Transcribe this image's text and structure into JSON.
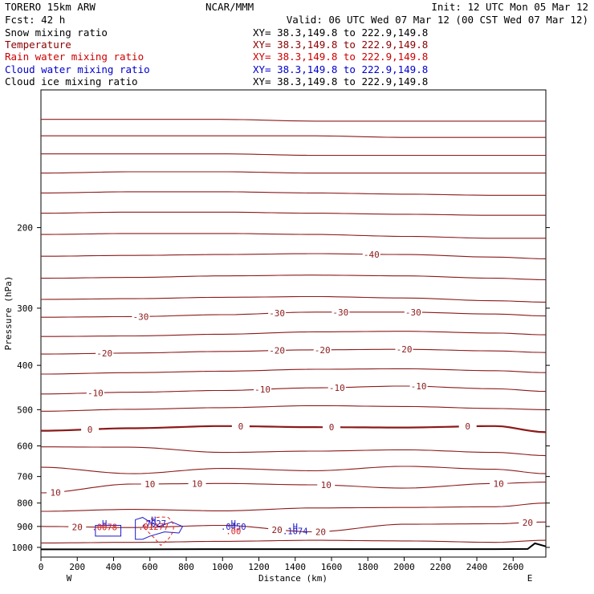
{
  "header": {
    "model": "TORERO  15km ARW",
    "center": "NCAR/MMM",
    "init": "Init: 12 UTC Mon 05 Mar 12",
    "fcst": "Fcst:   42 h",
    "valid": "Valid: 06 UTC Wed 07 Mar 12 (00 CST Wed 07 Mar 12)"
  },
  "legend": [
    {
      "label": "Snow mixing ratio",
      "xy": "XY=  38.3,149.8 to 222.9,149.8",
      "color": "#000000"
    },
    {
      "label": "Temperature",
      "xy": "XY=  38.3,149.8 to 222.9,149.8",
      "color": "#8b0000"
    },
    {
      "label": "Rain water mixing ratio",
      "xy": "XY=  38.3,149.8 to 222.9,149.8",
      "color": "#cc0000"
    },
    {
      "label": "Cloud water mixing ratio",
      "xy": "XY=  38.3,149.8 to 222.9,149.8",
      "color": "#0000cc"
    },
    {
      "label": "Cloud ice mixing ratio",
      "xy": "XY=  38.3,149.8 to 222.9,149.8",
      "color": "#000000"
    }
  ],
  "colors": {
    "temperature": "#8b1a1a",
    "rain": "#dd2222",
    "cloud_water": "#1a1acc",
    "terrain": "#000000",
    "axes": "#000000"
  },
  "chart_data": {
    "type": "line",
    "xlabel": "Distance (km)",
    "ylabel": "Pressure (hPa)",
    "xlim": [
      0,
      2780
    ],
    "ylim": [
      1050,
      100
    ],
    "y_scale": "log",
    "x_ticks": [
      0,
      200,
      400,
      600,
      800,
      1000,
      1200,
      1400,
      1600,
      1800,
      2000,
      2200,
      2400,
      2600
    ],
    "y_ticks": [
      200,
      300,
      400,
      500,
      600,
      700,
      800,
      900,
      1000
    ],
    "x_end_labels": {
      "left": "W",
      "right": "E"
    },
    "temperature_contours": [
      {
        "pressure": [
          116,
          116,
          116,
          117,
          117,
          117,
          117
        ],
        "x": [
          0,
          500,
          1000,
          1500,
          2000,
          2500,
          2780
        ]
      },
      {
        "pressure": [
          126,
          126,
          126,
          126,
          127,
          127,
          127
        ],
        "x": [
          0,
          500,
          1000,
          1500,
          2000,
          2500,
          2780
        ]
      },
      {
        "pressure": [
          138,
          138,
          138,
          139,
          139,
          139,
          139
        ],
        "x": [
          0,
          500,
          1000,
          1500,
          2000,
          2500,
          2780
        ]
      },
      {
        "pressure": [
          152,
          151,
          151,
          152,
          152,
          152,
          152
        ],
        "x": [
          0,
          500,
          1000,
          1500,
          2000,
          2500,
          2780
        ]
      },
      {
        "pressure": [
          168,
          167,
          167,
          168,
          169,
          170,
          170
        ],
        "x": [
          0,
          500,
          1000,
          1500,
          2000,
          2500,
          2780
        ]
      },
      {
        "pressure": [
          186,
          185,
          185,
          186,
          187,
          188,
          188
        ],
        "x": [
          0,
          500,
          1000,
          1500,
          2000,
          2500,
          2780
        ]
      },
      {
        "pressure": [
          207,
          206,
          206,
          207,
          209,
          211,
          211
        ],
        "x": [
          0,
          500,
          1000,
          1500,
          2000,
          2500,
          2780
        ]
      },
      {
        "pressure": [
          231,
          230,
          229,
          228,
          229,
          232,
          234
        ],
        "x": [
          0,
          500,
          1000,
          1500,
          2000,
          2500,
          2780
        ],
        "label": "-40",
        "label_x": 1820
      },
      {
        "pressure": [
          258,
          257,
          255,
          254,
          255,
          258,
          260
        ],
        "x": [
          0,
          500,
          1000,
          1500,
          2000,
          2500,
          2780
        ]
      },
      {
        "pressure": [
          287,
          286,
          284,
          283,
          285,
          289,
          291
        ],
        "x": [
          0,
          500,
          1000,
          1500,
          2000,
          2500,
          2780
        ]
      },
      {
        "pressure": [
          314,
          313,
          310,
          306,
          306,
          309,
          312
        ],
        "x": [
          0,
          500,
          1000,
          1500,
          2000,
          2500,
          2780
        ],
        "label": "-30",
        "label_x": 550,
        "label_x2": 1300,
        "label_x3": 1650,
        "label_x4": 2050
      },
      {
        "pressure": [
          346,
          345,
          342,
          338,
          337,
          340,
          343
        ],
        "x": [
          0,
          500,
          1000,
          1500,
          2000,
          2500,
          2780
        ]
      },
      {
        "pressure": [
          378,
          376,
          373,
          370,
          369,
          372,
          375
        ],
        "x": [
          0,
          500,
          1000,
          1500,
          2000,
          2500,
          2780
        ],
        "label": "-20",
        "label_x": 350,
        "label_x2": 1300,
        "label_x3": 1550,
        "label_x4": 2000
      },
      {
        "pressure": [
          418,
          415,
          412,
          408,
          407,
          411,
          415
        ],
        "x": [
          0,
          500,
          1000,
          1500,
          2000,
          2500,
          2780
        ]
      },
      {
        "pressure": [
          462,
          458,
          454,
          448,
          444,
          450,
          456
        ],
        "x": [
          0,
          500,
          1000,
          1500,
          2000,
          2500,
          2780
        ],
        "label": "-10",
        "label_x": 300,
        "label_x2": 1220,
        "label_x3": 1630,
        "label_x4": 2080
      },
      {
        "pressure": [
          504,
          499,
          495,
          490,
          492,
          497,
          500
        ],
        "x": [
          0,
          500,
          1000,
          1500,
          2000,
          2500,
          2780
        ]
      },
      {
        "pressure": [
          556,
          549,
          543,
          546,
          547,
          543,
          560
        ],
        "x": [
          0,
          500,
          1000,
          1500,
          2000,
          2500,
          2780
        ],
        "label": "0",
        "label_x": 270,
        "label_x2": 1100,
        "label_x3": 1600,
        "label_x4": 2350,
        "bold": true
      },
      {
        "pressure": [
          603,
          604,
          620,
          616,
          612,
          620,
          630
        ],
        "x": [
          0,
          500,
          1000,
          1500,
          2000,
          2500,
          2780
        ]
      },
      {
        "pressure": [
          668,
          690,
          672,
          680,
          665,
          675,
          690
        ],
        "x": [
          0,
          500,
          1000,
          1500,
          2000,
          2500,
          2780
        ]
      },
      {
        "pressure": [
          760,
          727,
          725,
          730,
          742,
          725,
          720
        ],
        "x": [
          0,
          500,
          1000,
          1500,
          2000,
          2500,
          2780
        ],
        "label": "10",
        "label_x": 80,
        "label_x2": 600,
        "label_x3": 860,
        "label_x4": 1570,
        "label_x5": 2520
      },
      {
        "pressure": [
          834,
          826,
          832,
          820,
          818,
          815,
          800
        ],
        "x": [
          0,
          500,
          1000,
          1500,
          2000,
          2500,
          2780
        ]
      },
      {
        "pressure": [
          900,
          905,
          895,
          925,
          890,
          888,
          880
        ],
        "x": [
          0,
          500,
          1000,
          1500,
          2000,
          2500,
          2780
        ],
        "label": "20",
        "label_x": 200,
        "label_x2": 1300,
        "label_x3": 1540,
        "label_x4": 2680
      },
      {
        "pressure": [
          978,
          975,
          970,
          965,
          968,
          975,
          965
        ],
        "x": [
          0,
          500,
          1000,
          1500,
          2000,
          2500,
          2780
        ]
      }
    ],
    "terrain": {
      "x": [
        0,
        500,
        1000,
        1500,
        2000,
        2500,
        2680,
        2720,
        2780
      ],
      "pressure": [
        1010,
        1010,
        1009,
        1009,
        1009,
        1009,
        1008,
        980,
        995
      ]
    },
    "annotations": [
      {
        "text": "H",
        "x": 350,
        "p": 900,
        "color": "#1a1acc"
      },
      {
        "text": ".0078",
        "x": 350,
        "p": 918,
        "color": "#dd2222"
      },
      {
        "text": "H",
        "x": 620,
        "p": 885,
        "color": "#1a1acc"
      },
      {
        "text": ".7027",
        "x": 620,
        "p": 900,
        "color": "#1a1acc"
      },
      {
        "text": ".01277",
        "x": 620,
        "p": 915,
        "color": "#dd2222"
      },
      {
        "text": "H",
        "x": 1060,
        "p": 900,
        "color": "#1a1acc"
      },
      {
        "text": ".0450",
        "x": 1060,
        "p": 916,
        "color": "#1a1acc"
      },
      {
        "text": ".00",
        "x": 1060,
        "p": 935,
        "color": "#dd2222"
      },
      {
        "text": "H",
        "x": 1400,
        "p": 915,
        "color": "#1a1acc"
      },
      {
        "text": ".1074",
        "x": 1400,
        "p": 935,
        "color": "#1a1acc"
      }
    ]
  }
}
